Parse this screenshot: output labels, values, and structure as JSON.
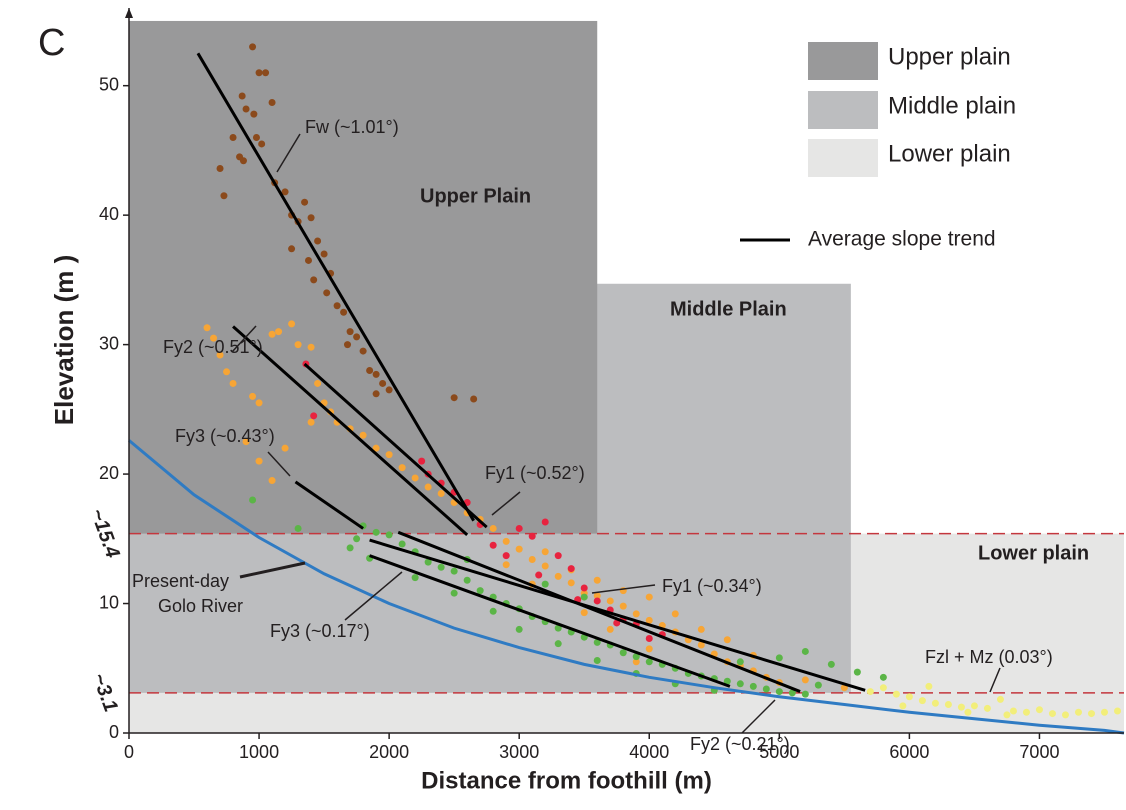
{
  "chart_data": {
    "type": "scatter",
    "xlabel": "Distance from foothill (m)",
    "ylabel": "Elevation (m )",
    "xlim": [
      0,
      7650
    ],
    "ylim": [
      0,
      56
    ],
    "xticks": [
      0,
      1000,
      2000,
      3000,
      4000,
      5000,
      6000,
      7000
    ],
    "yticks": [
      0,
      10,
      20,
      30,
      40,
      50
    ],
    "regions": [
      {
        "name": "Upper plain",
        "color": "#99999a",
        "x": [
          0,
          3600
        ],
        "y": [
          15.4,
          55
        ]
      },
      {
        "name": "Middle plain",
        "color": "#bcbdbf",
        "x": [
          0,
          5550
        ],
        "y": [
          3.1,
          34.7
        ]
      },
      {
        "name": "Lower plain",
        "color": "#e6e6e5",
        "x": [
          0,
          7650
        ],
        "y": [
          0,
          15.4
        ]
      }
    ],
    "hlines": [
      {
        "value": 15.4,
        "label": "~15.4",
        "color": "#c4373e"
      },
      {
        "value": 3.1,
        "label": "~3.1",
        "color": "#c4373e"
      }
    ],
    "series": [
      {
        "color": "#8b4a1c",
        "x": [
          950,
          1000,
          1050,
          1100,
          870,
          900,
          960,
          980,
          1020,
          800,
          850,
          880,
          700,
          730,
          1120,
          1200,
          1250,
          1300,
          1350,
          1400,
          1450,
          1500,
          1380,
          1520,
          1600,
          1650,
          1700,
          1750,
          1800,
          1850,
          1900,
          1950,
          2000,
          1550,
          1420,
          1680,
          2500,
          2650,
          1250,
          1900
        ],
        "values": [
          53,
          51,
          51,
          48.7,
          49.2,
          48.2,
          47.8,
          46,
          45.5,
          46,
          44.5,
          44.2,
          43.6,
          41.5,
          42.5,
          41.8,
          40,
          39.5,
          41,
          39.8,
          38,
          37,
          36.5,
          34,
          33,
          32.5,
          31,
          30.6,
          29.5,
          28,
          27.7,
          27,
          26.5,
          35.5,
          35,
          30,
          25.9,
          25.8,
          37.4,
          26.2
        ]
      },
      {
        "color": "#f7a535",
        "x": [
          600,
          650,
          700,
          750,
          800,
          950,
          1000,
          1100,
          1150,
          1250,
          1300,
          1400,
          1450,
          1500,
          1550,
          1600,
          1700,
          1800,
          1900,
          2000,
          2100,
          2200,
          2300,
          2400,
          2500,
          2600,
          2700,
          2800,
          2900,
          3000,
          3100,
          3200,
          3300,
          3400,
          3500,
          3600,
          3700,
          3800,
          3900,
          4000,
          4100,
          4200,
          4300,
          4400,
          4500,
          4600,
          4700,
          4800,
          4900,
          5000,
          3200,
          3400,
          3600,
          3800,
          4000,
          4200,
          4400,
          4000,
          3900,
          3500,
          1100,
          1000,
          900,
          1400,
          1200,
          2900,
          3100,
          3700,
          4600,
          4800,
          5200,
          5500
        ],
        "values": [
          31.3,
          30.5,
          29.2,
          27.9,
          27,
          26,
          25.5,
          30.8,
          31,
          31.6,
          30,
          29.8,
          27,
          25.5,
          24.8,
          24,
          23.5,
          23,
          22,
          21.5,
          20.5,
          19.7,
          19,
          18.5,
          17.8,
          17,
          16.5,
          15.8,
          14.8,
          14.2,
          13.4,
          12.9,
          12.1,
          11.6,
          10.8,
          10.6,
          10.2,
          9.8,
          9.2,
          8.7,
          8.3,
          7.8,
          7.2,
          6.8,
          6.1,
          5.5,
          5.2,
          4.8,
          4.3,
          3.9,
          14,
          12.6,
          11.8,
          11,
          10.5,
          9.2,
          8,
          6.5,
          5.5,
          9.3,
          19.5,
          21,
          22.5,
          24,
          22,
          13,
          11.5,
          8,
          7.2,
          6,
          4.1,
          3.5
        ]
      },
      {
        "color": "#e8233f",
        "x": [
          2250,
          2300,
          2400,
          2500,
          2700,
          2800,
          2900,
          3000,
          3100,
          3200,
          3300,
          3400,
          3500,
          3600,
          3700,
          3800,
          3900,
          4000,
          4100,
          1360,
          1420,
          2600,
          3150,
          3450,
          3750
        ],
        "values": [
          21,
          20,
          19.3,
          18.6,
          16.1,
          14.5,
          13.7,
          15.8,
          15.2,
          16.3,
          13.7,
          12.7,
          11.2,
          10.2,
          9.5,
          8.8,
          8.4,
          7.3,
          7.6,
          28.5,
          24.5,
          17.8,
          12.2,
          10.3,
          8.5
        ]
      },
      {
        "color": "#5bb547",
        "x": [
          950,
          1300,
          1700,
          1750,
          1800,
          1900,
          2000,
          2100,
          2200,
          2300,
          2400,
          2500,
          2600,
          2700,
          2800,
          2900,
          3000,
          3100,
          3200,
          3300,
          3400,
          3500,
          3600,
          3700,
          3800,
          3900,
          4000,
          4100,
          4200,
          4300,
          4400,
          4500,
          4600,
          4700,
          4800,
          4900,
          5000,
          5100,
          5200,
          2200,
          2500,
          2800,
          3000,
          3300,
          3600,
          3900,
          4200,
          4500,
          5000,
          5200,
          5400,
          5600,
          5800,
          3500,
          3200,
          2600,
          4700,
          5300,
          1850
        ],
        "values": [
          18,
          15.8,
          14.3,
          15,
          16,
          15.5,
          15.3,
          14.6,
          14,
          13.2,
          12.8,
          12.5,
          11.8,
          11,
          10.5,
          10,
          9.6,
          9,
          8.6,
          8.1,
          7.8,
          7.4,
          7,
          6.8,
          6.2,
          5.9,
          5.5,
          5.3,
          5,
          4.6,
          4.4,
          4.2,
          4,
          3.8,
          3.6,
          3.4,
          3.2,
          3.1,
          3.0,
          12,
          10.8,
          9.4,
          8,
          6.9,
          5.6,
          4.6,
          3.8,
          3.3,
          5.8,
          6.3,
          5.3,
          4.7,
          4.3,
          10.5,
          11.5,
          13.4,
          5.5,
          3.7,
          13.5
        ]
      },
      {
        "color": "#f2ee7a",
        "x": [
          5700,
          5800,
          5900,
          6000,
          6100,
          6200,
          6300,
          6400,
          6500,
          6600,
          6700,
          6800,
          6900,
          7000,
          7100,
          7200,
          7300,
          7400,
          7500,
          7600,
          6150,
          6450,
          6750,
          5950
        ],
        "values": [
          3.2,
          3.5,
          3.0,
          2.8,
          2.5,
          2.3,
          2.2,
          2.0,
          2.1,
          1.9,
          2.6,
          1.7,
          1.6,
          1.8,
          1.5,
          1.4,
          1.6,
          1.5,
          1.6,
          1.7,
          3.6,
          1.6,
          1.4,
          2.1
        ]
      }
    ],
    "river": {
      "color": "#2f7bc3",
      "x": [
        0,
        500,
        1000,
        1500,
        2000,
        2500,
        3000,
        3500,
        4000,
        4500,
        5000,
        5500,
        6000,
        6500,
        7000,
        7500,
        7650
      ],
      "values": [
        22.6,
        18.4,
        15.1,
        12.3,
        10.0,
        8.1,
        6.6,
        5.3,
        4.3,
        3.5,
        2.8,
        2.2,
        1.6,
        1.1,
        0.6,
        0.2,
        0.0
      ]
    },
    "trend_lines": {
      "name": "Average slope trend",
      "color": "#000000",
      "lines": [
        {
          "x": [
            530,
            2650
          ],
          "y": [
            52.5,
            16.4
          ]
        },
        {
          "x": [
            800,
            2600
          ],
          "y": [
            31.4,
            15.3
          ]
        },
        {
          "x": [
            1350,
            2750
          ],
          "y": [
            28.5,
            15.9
          ]
        },
        {
          "x": [
            1280,
            1800
          ],
          "y": [
            19.4,
            15.8
          ]
        },
        {
          "x": [
            2070,
            5160
          ],
          "y": [
            15.5,
            3.2
          ]
        },
        {
          "x": [
            1850,
            4620
          ],
          "y": [
            13.7,
            3.6
          ]
        },
        {
          "x": [
            1850,
            5660
          ],
          "y": [
            14.9,
            3.3
          ]
        }
      ]
    },
    "annotations": [
      "Fw (~1.01°)",
      "Upper Plain",
      "Middle Plain",
      "Lower plain",
      "Fy2 (~0.51°)",
      "Fy3 (~0.43°)",
      "Fy1 (~0.52°)",
      "Present-day",
      "Golo River",
      "Fy1 (~0.34°)",
      "Fy3 (~0.17°)",
      "Fzl + Mz (0.03°)",
      "Fy2 (~0.21°)",
      "C"
    ]
  }
}
